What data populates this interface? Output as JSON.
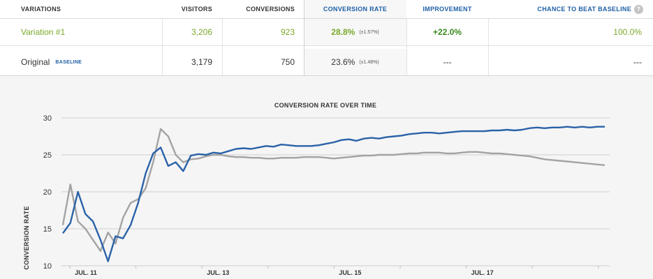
{
  "table": {
    "headers": {
      "variations": "VARIATIONS",
      "visitors": "VISITORS",
      "conversions": "CONVERSIONS",
      "conversion_rate": "CONVERSION RATE",
      "improvement": "IMPROVEMENT",
      "chance_to_beat": "CHANCE TO BEAT BASELINE",
      "help_icon": "?"
    },
    "rows": [
      {
        "name": "Variation #1",
        "visitors": "3,206",
        "conversions": "923",
        "rate": "28.8%",
        "ci": "(±1.57%)",
        "improvement": "+22.0%",
        "chance": "100.0%"
      },
      {
        "name": "Original",
        "badge": "BASELINE",
        "visitors": "3,179",
        "conversions": "750",
        "rate": "23.6%",
        "ci": "(±1.48%)",
        "improvement": "---",
        "chance": "---"
      }
    ],
    "colors": {
      "winner_green": "#7aa82a",
      "improvement_green": "#3a8a1f",
      "header_blue": "#1e5fa6"
    }
  },
  "chart_data": {
    "type": "line",
    "title": "CONVERSION RATE OVER TIME",
    "ylabel": "CONVERSION RATE",
    "ylim": [
      10,
      30
    ],
    "yticks": [
      "10",
      "15",
      "20",
      "25",
      "30"
    ],
    "xticks": [
      "JUL. 11",
      "JUL. 13",
      "JUL. 15",
      "JUL. 17"
    ],
    "grid": true,
    "series": [
      {
        "color": "#2a62a8",
        "values": [
          14.4,
          15.8,
          20.0,
          17.0,
          16.0,
          13.5,
          10.6,
          14.0,
          13.7,
          15.5,
          18.5,
          22.5,
          25.2,
          26.0,
          23.5,
          24.0,
          22.8,
          24.9,
          25.1,
          25.0,
          25.3,
          25.2,
          25.5,
          25.8,
          25.9,
          25.8,
          26.0,
          26.2,
          26.1,
          26.4,
          26.3,
          26.2,
          26.2,
          26.2,
          26.3,
          26.5,
          26.7,
          27.0,
          27.1,
          26.9,
          27.2,
          27.3,
          27.2,
          27.4,
          27.5,
          27.6,
          27.8,
          27.9,
          28.0,
          28.0,
          27.9,
          28.0,
          28.1,
          28.2,
          28.2,
          28.2,
          28.2,
          28.3,
          28.3,
          28.4,
          28.3,
          28.4,
          28.6,
          28.7,
          28.6,
          28.7,
          28.7,
          28.8,
          28.7,
          28.8,
          28.7,
          28.8,
          28.8
        ]
      },
      {
        "color": "#a3a3a3",
        "values": [
          15.5,
          21.0,
          16.0,
          15.0,
          13.5,
          12.0,
          14.5,
          13.0,
          16.5,
          18.5,
          19.0,
          20.5,
          24.0,
          28.5,
          27.5,
          25.0,
          24.0,
          24.4,
          24.5,
          24.8,
          25.0,
          25.0,
          24.8,
          24.7,
          24.7,
          24.6,
          24.6,
          24.5,
          24.5,
          24.6,
          24.6,
          24.6,
          24.7,
          24.7,
          24.7,
          24.6,
          24.5,
          24.6,
          24.7,
          24.8,
          24.9,
          24.9,
          25.0,
          25.0,
          25.0,
          25.1,
          25.2,
          25.2,
          25.3,
          25.3,
          25.3,
          25.2,
          25.2,
          25.3,
          25.4,
          25.4,
          25.3,
          25.2,
          25.2,
          25.1,
          25.0,
          24.9,
          24.8,
          24.6,
          24.4,
          24.3,
          24.2,
          24.1,
          24.0,
          23.9,
          23.8,
          23.7,
          23.6
        ]
      }
    ]
  }
}
